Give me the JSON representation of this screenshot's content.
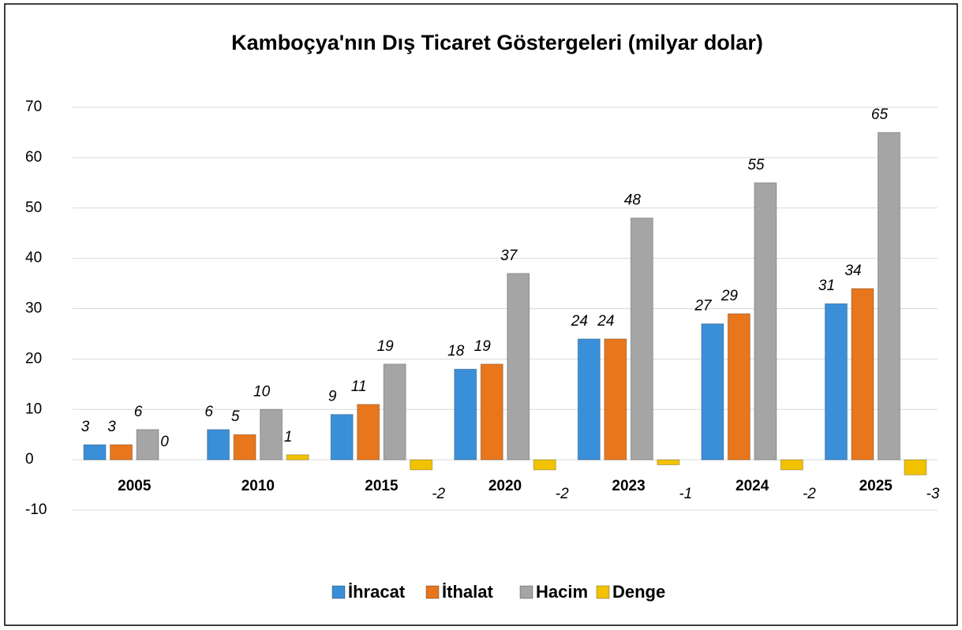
{
  "chart_data": {
    "type": "bar",
    "title": "Kamboçya'nın Dış Ticaret Göstergeleri (milyar dolar)",
    "categories": [
      "2005",
      "2010",
      "2015",
      "2020",
      "2023",
      "2024",
      "2025"
    ],
    "series": [
      {
        "name": "İhracat",
        "color": "#3a8fd9",
        "values": [
          3,
          6,
          9,
          18,
          24,
          27,
          31
        ]
      },
      {
        "name": "İthalat",
        "color": "#e8761c",
        "values": [
          3,
          5,
          11,
          19,
          24,
          29,
          34
        ]
      },
      {
        "name": "Hacim",
        "color": "#a5a5a5",
        "values": [
          6,
          10,
          19,
          37,
          48,
          55,
          65
        ]
      },
      {
        "name": "Denge",
        "color": "#f2c200",
        "values": [
          0,
          1,
          -2,
          -2,
          -1,
          -2,
          -3
        ]
      }
    ],
    "ylim": [
      -10,
      70
    ],
    "yticks": [
      -10,
      0,
      10,
      20,
      30,
      40,
      50,
      60,
      70
    ],
    "grid": true,
    "legend": "bottom"
  }
}
